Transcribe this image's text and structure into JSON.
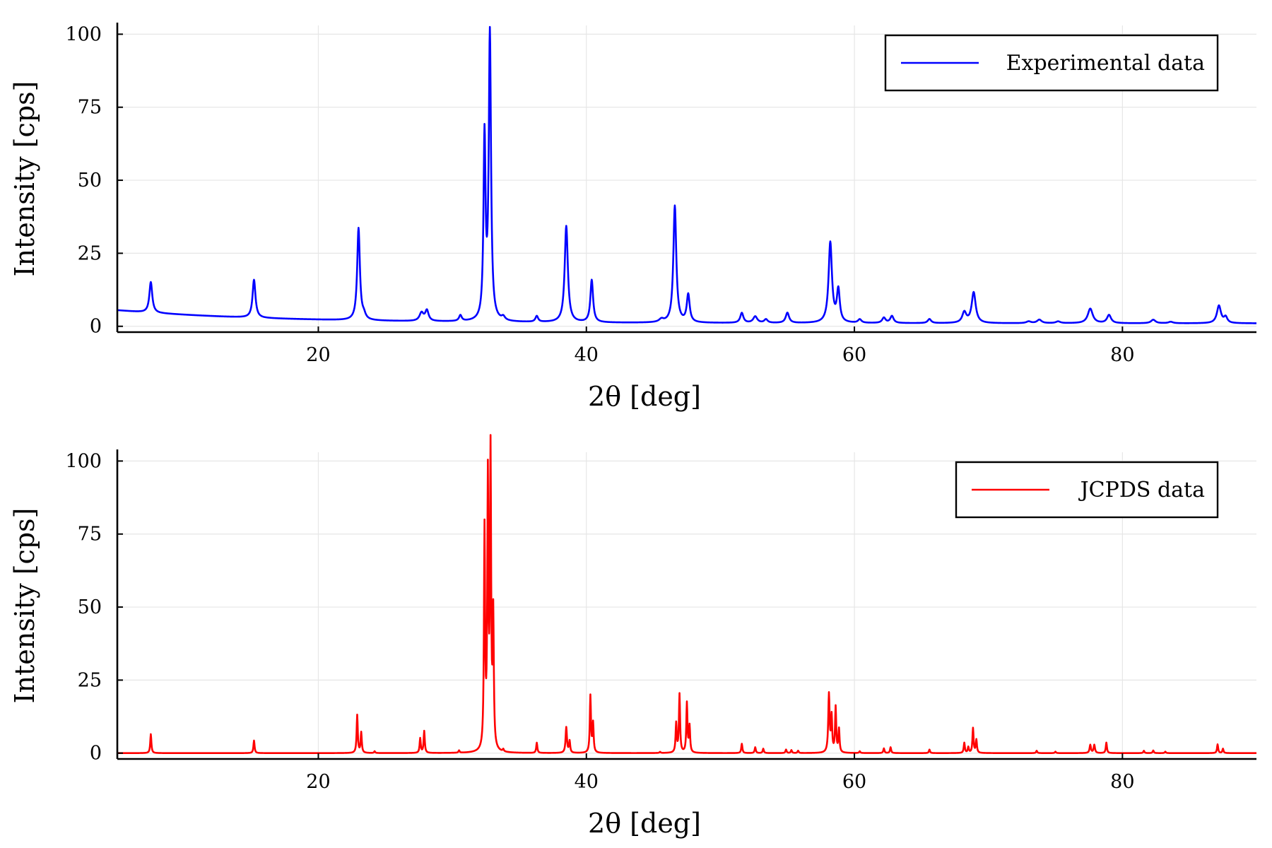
{
  "chart_data": [
    {
      "type": "line",
      "xlabel": "2θ [deg]",
      "ylabel": "Intensity [cps]",
      "xlim": [
        5,
        90
      ],
      "ylim": [
        -2,
        103
      ],
      "xticks": [
        20,
        40,
        60,
        80
      ],
      "yticks": [
        0,
        25,
        50,
        75,
        100
      ],
      "grid": true,
      "legend_position": "top-right",
      "series": [
        {
          "name": "Experimental data",
          "color": "#0000ff",
          "peaks": [
            [
              7.5,
              10.5,
              0.13
            ],
            [
              15.2,
              13.0,
              0.13
            ],
            [
              23.0,
              31.5,
              0.12
            ],
            [
              23.4,
              1.5,
              0.15
            ],
            [
              27.7,
              2.8,
              0.18
            ],
            [
              28.1,
              3.6,
              0.15
            ],
            [
              30.6,
              2.0,
              0.12
            ],
            [
              32.4,
              62.0,
              0.09
            ],
            [
              32.8,
              98.0,
              0.1
            ],
            [
              33.8,
              1.2,
              0.15
            ],
            [
              36.3,
              2.0,
              0.12
            ],
            [
              38.5,
              33.0,
              0.14
            ],
            [
              40.4,
              14.5,
              0.12
            ],
            [
              45.6,
              1.0,
              0.2
            ],
            [
              46.6,
              40.0,
              0.13
            ],
            [
              47.6,
              9.5,
              0.13
            ],
            [
              51.6,
              3.4,
              0.14
            ],
            [
              52.6,
              2.2,
              0.18
            ],
            [
              53.4,
              1.2,
              0.15
            ],
            [
              55.0,
              3.5,
              0.15
            ],
            [
              58.2,
              27.5,
              0.15
            ],
            [
              58.8,
              11.0,
              0.13
            ],
            [
              60.4,
              1.2,
              0.15
            ],
            [
              62.2,
              1.8,
              0.15
            ],
            [
              62.8,
              2.4,
              0.15
            ],
            [
              65.6,
              1.4,
              0.15
            ],
            [
              68.2,
              3.6,
              0.18
            ],
            [
              68.9,
              10.5,
              0.18
            ],
            [
              73.0,
              0.6,
              0.2
            ],
            [
              73.8,
              1.2,
              0.2
            ],
            [
              75.2,
              0.6,
              0.2
            ],
            [
              77.6,
              5.0,
              0.22
            ],
            [
              79.0,
              2.8,
              0.18
            ],
            [
              82.3,
              1.2,
              0.2
            ],
            [
              83.6,
              0.5,
              0.2
            ],
            [
              87.2,
              6.0,
              0.18
            ],
            [
              87.7,
              2.0,
              0.15
            ]
          ]
        },
        {
          "name": "JCPDS data",
          "color": "#ff0000",
          "peaks": [
            [
              7.5,
              6.5,
              0.05
            ],
            [
              15.2,
              4.3,
              0.05
            ],
            [
              22.9,
              13.0,
              0.05
            ],
            [
              23.2,
              7.0,
              0.05
            ],
            [
              24.2,
              0.6,
              0.05
            ],
            [
              27.6,
              5.0,
              0.05
            ],
            [
              27.9,
              7.5,
              0.05
            ],
            [
              30.5,
              0.8,
              0.05
            ],
            [
              32.4,
              75.0,
              0.05
            ],
            [
              32.65,
              91.0,
              0.05
            ],
            [
              32.85,
              100.0,
              0.05
            ],
            [
              33.05,
              45.0,
              0.05
            ],
            [
              33.8,
              0.8,
              0.05
            ],
            [
              36.3,
              3.5,
              0.05
            ],
            [
              38.5,
              8.8,
              0.06
            ],
            [
              38.75,
              4.0,
              0.05
            ],
            [
              40.3,
              19.5,
              0.05
            ],
            [
              40.5,
              10.0,
              0.05
            ],
            [
              45.5,
              0.4,
              0.05
            ],
            [
              46.7,
              10.0,
              0.05
            ],
            [
              46.95,
              20.0,
              0.05
            ],
            [
              47.5,
              17.0,
              0.05
            ],
            [
              47.7,
              9.0,
              0.05
            ],
            [
              51.6,
              3.2,
              0.05
            ],
            [
              52.6,
              2.0,
              0.05
            ],
            [
              53.2,
              1.5,
              0.05
            ],
            [
              54.9,
              1.2,
              0.05
            ],
            [
              55.3,
              1.0,
              0.05
            ],
            [
              55.8,
              0.8,
              0.05
            ],
            [
              58.1,
              20.0,
              0.06
            ],
            [
              58.3,
              12.0,
              0.05
            ],
            [
              58.6,
              15.5,
              0.05
            ],
            [
              58.85,
              8.0,
              0.05
            ],
            [
              60.4,
              0.6,
              0.05
            ],
            [
              62.2,
              1.6,
              0.05
            ],
            [
              62.7,
              2.0,
              0.05
            ],
            [
              65.6,
              1.2,
              0.05
            ],
            [
              68.2,
              3.5,
              0.05
            ],
            [
              68.5,
              2.0,
              0.05
            ],
            [
              68.85,
              8.5,
              0.05
            ],
            [
              69.1,
              4.5,
              0.05
            ],
            [
              73.6,
              0.8,
              0.05
            ],
            [
              75.0,
              0.5,
              0.05
            ],
            [
              77.6,
              2.8,
              0.06
            ],
            [
              77.9,
              2.8,
              0.06
            ],
            [
              78.8,
              3.6,
              0.05
            ],
            [
              81.6,
              0.8,
              0.05
            ],
            [
              82.3,
              0.9,
              0.05
            ],
            [
              83.2,
              0.5,
              0.05
            ],
            [
              87.1,
              3.0,
              0.05
            ],
            [
              87.5,
              1.5,
              0.05
            ]
          ]
        }
      ]
    }
  ]
}
